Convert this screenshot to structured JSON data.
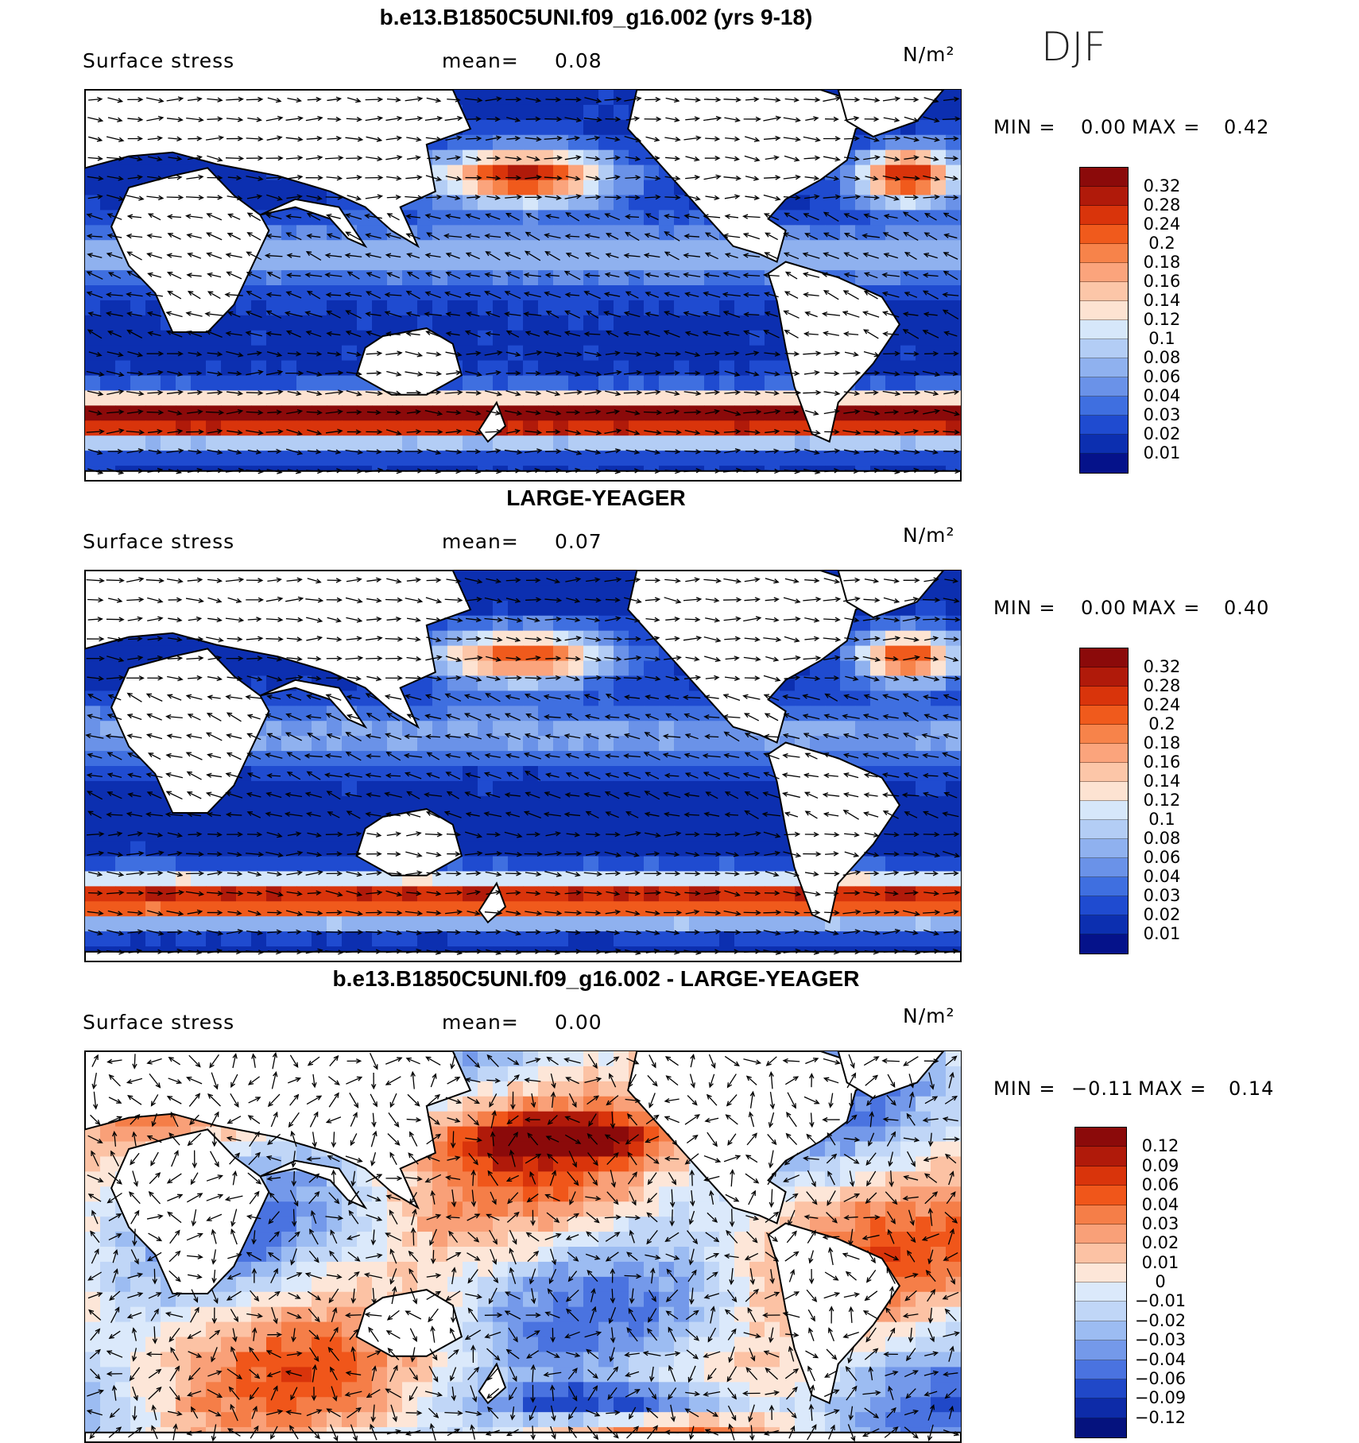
{
  "season": "DJF",
  "panels": [
    {
      "title": "b.e13.B1850C5UNI.f09_g16.002 (yrs 9-18)",
      "variable": "Surface stress",
      "mean_label": "mean=",
      "mean_value": "0.08",
      "units": "N/m²",
      "min_label": "MIN =",
      "min_value": "0.00",
      "max_label": "MAX =",
      "max_value": "0.42",
      "scheme": "abs"
    },
    {
      "title": "LARGE-YEAGER",
      "variable": "Surface stress",
      "mean_label": "mean=",
      "mean_value": "0.07",
      "units": "N/m²",
      "min_label": "MIN =",
      "min_value": "0.00",
      "max_label": "MAX =",
      "max_value": "0.40",
      "scheme": "abs"
    },
    {
      "title": "b.e13.B1850C5UNI.f09_g16.002 - LARGE-YEAGER",
      "variable": "Surface stress",
      "mean_label": "mean=",
      "mean_value": "0.00",
      "units": "N/m²",
      "min_label": "MIN =",
      "min_value": "−0.11",
      "max_label": "MAX =",
      "max_value": "0.14",
      "scheme": "diff"
    }
  ],
  "colorbars": {
    "abs": {
      "ticks": [
        "0.32",
        "0.28",
        "0.24",
        "0.2",
        "0.18",
        "0.16",
        "0.14",
        "0.12",
        "0.1",
        "0.08",
        "0.06",
        "0.04",
        "0.03",
        "0.02",
        "0.01"
      ],
      "colors": [
        "#8b0a0a",
        "#b01a0a",
        "#d9340b",
        "#f05a1c",
        "#f7834a",
        "#fba47c",
        "#fcc6a8",
        "#fde3d2",
        "#d6e7fa",
        "#b3cdf5",
        "#8fb1ef",
        "#6a92e8",
        "#3f6fe0",
        "#1f4bd0",
        "#0c2fb0",
        "#05128a"
      ]
    },
    "diff": {
      "ticks": [
        "0.12",
        "0.09",
        "0.06",
        "0.04",
        "0.03",
        "0.02",
        "0.01",
        "0",
        "−0.01",
        "−0.02",
        "−0.03",
        "−0.04",
        "−0.06",
        "−0.09",
        "−0.12"
      ],
      "colors": [
        "#8b0a0a",
        "#b01a0a",
        "#d9340b",
        "#f0561a",
        "#f57e48",
        "#f9a078",
        "#fcc2a4",
        "#fde6d8",
        "#dbe9fb",
        "#c0d6f7",
        "#9cbcf2",
        "#7499ea",
        "#4a73e0",
        "#2048c8",
        "#0d2ba8",
        "#05127e"
      ]
    }
  }
}
